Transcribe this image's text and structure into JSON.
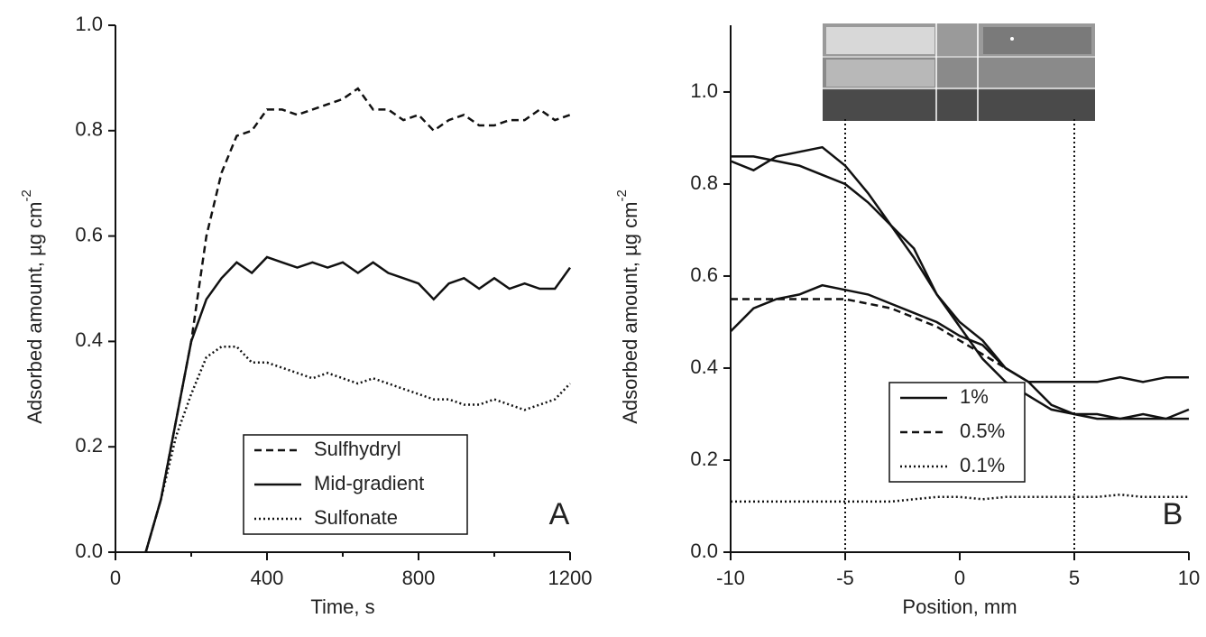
{
  "chart_data": [
    {
      "type": "line",
      "annotation": "A",
      "xlabel": "Time, s",
      "ylabel": "Adsorbed amount, µg cm",
      "ylabel_sup": "-2",
      "xlim": [
        0,
        1200
      ],
      "ylim": [
        0,
        1.0
      ],
      "xticks": [
        0,
        400,
        800,
        1200
      ],
      "xminor": [
        200,
        600,
        1000
      ],
      "yticks": [
        {
          "value": 0,
          "label": "0.0"
        },
        {
          "value": 0.2,
          "label": "0.2"
        },
        {
          "value": 0.4,
          "label": "0.4"
        },
        {
          "value": 0.6,
          "label": "0.6"
        },
        {
          "value": 0.8,
          "label": "0.8"
        },
        {
          "value": 1.0,
          "label": "1.0"
        }
      ],
      "legend": "lower right",
      "x": [
        80,
        120,
        160,
        200,
        240,
        280,
        320,
        360,
        400,
        440,
        480,
        520,
        560,
        600,
        640,
        680,
        720,
        760,
        800,
        840,
        880,
        920,
        960,
        1000,
        1040,
        1080,
        1120,
        1160,
        1200
      ],
      "series": [
        {
          "name": "Sulfhydryl",
          "color": "#111111",
          "dash": "dashed",
          "values": [
            0,
            0.1,
            0.25,
            0.4,
            0.6,
            0.72,
            0.79,
            0.8,
            0.84,
            0.84,
            0.83,
            0.84,
            0.85,
            0.86,
            0.88,
            0.84,
            0.84,
            0.82,
            0.83,
            0.8,
            0.82,
            0.83,
            0.81,
            0.81,
            0.82,
            0.82,
            0.84,
            0.82,
            0.83
          ]
        },
        {
          "name": "Mid-gradient",
          "color": "#111111",
          "dash": "solid",
          "values": [
            0,
            0.1,
            0.25,
            0.4,
            0.48,
            0.52,
            0.55,
            0.53,
            0.56,
            0.55,
            0.54,
            0.55,
            0.54,
            0.55,
            0.53,
            0.55,
            0.53,
            0.52,
            0.51,
            0.48,
            0.51,
            0.52,
            0.5,
            0.52,
            0.5,
            0.51,
            0.5,
            0.5,
            0.54
          ]
        },
        {
          "name": "Sulfonate",
          "color": "#111111",
          "dash": "dotted",
          "values": [
            0,
            0.1,
            0.22,
            0.3,
            0.37,
            0.39,
            0.39,
            0.36,
            0.36,
            0.35,
            0.34,
            0.33,
            0.34,
            0.33,
            0.32,
            0.33,
            0.32,
            0.31,
            0.3,
            0.29,
            0.29,
            0.28,
            0.28,
            0.29,
            0.28,
            0.27,
            0.28,
            0.29,
            0.32
          ]
        }
      ]
    },
    {
      "type": "line",
      "annotation": "B",
      "xlabel": "Position, mm",
      "ylabel": "Adsorbed amount, µg cm",
      "ylabel_sup": "-2",
      "xlim": [
        -10,
        10
      ],
      "ylim": [
        0,
        1.145
      ],
      "xticks": [
        -10,
        -5,
        0,
        5,
        10
      ],
      "yticks": [
        {
          "value": 0,
          "label": "0.0"
        },
        {
          "value": 0.2,
          "label": "0.2"
        },
        {
          "value": 0.4,
          "label": "0.4"
        },
        {
          "value": 0.6,
          "label": "0.6"
        },
        {
          "value": 0.8,
          "label": "0.8"
        },
        {
          "value": 1.0,
          "label": "1.0"
        }
      ],
      "vlines": [
        -5,
        5
      ],
      "legend": "center",
      "x": [
        -10,
        -9,
        -8,
        -7,
        -6,
        -5,
        -4,
        -3,
        -2,
        -1,
        0,
        1,
        2,
        3,
        4,
        5,
        6,
        7,
        8,
        9,
        10
      ],
      "series": [
        {
          "name": "1%",
          "color": "#111111",
          "dash": "solid",
          "values": [
            0.85,
            0.83,
            0.86,
            0.87,
            0.88,
            0.84,
            0.78,
            0.71,
            0.66,
            0.56,
            0.5,
            0.46,
            0.4,
            0.37,
            0.32,
            0.3,
            0.29,
            0.29,
            0.3,
            0.29,
            0.31
          ]
        },
        {
          "color": "#111111",
          "dash": "solid",
          "values": [
            0.86,
            0.86,
            0.85,
            0.84,
            0.82,
            0.8,
            0.76,
            0.71,
            0.64,
            0.56,
            0.49,
            0.42,
            0.37,
            0.34,
            0.31,
            0.3,
            0.3,
            0.29,
            0.29,
            0.29,
            0.29
          ]
        },
        {
          "name": "0.5%",
          "color": "#111111",
          "dash": "dashed",
          "values": [
            0.55,
            0.55,
            0.55,
            0.55,
            0.55,
            0.55,
            0.54,
            0.53,
            0.51,
            0.49,
            0.46,
            0.43,
            0.4,
            null,
            null,
            null,
            null,
            null,
            null,
            null,
            null
          ]
        },
        {
          "color": "#111111",
          "dash": "solid",
          "values": [
            0.48,
            0.53,
            0.55,
            0.56,
            0.58,
            0.57,
            0.56,
            0.54,
            0.52,
            0.5,
            0.47,
            0.45,
            0.4,
            0.37,
            0.37,
            0.37,
            0.37,
            0.38,
            0.37,
            0.38,
            0.38
          ]
        },
        {
          "name": "0.1%",
          "color": "#111111",
          "dash": "dotted",
          "values": [
            0.11,
            0.11,
            0.11,
            0.11,
            0.11,
            0.11,
            0.11,
            0.11,
            0.115,
            0.12,
            0.12,
            0.115,
            0.12,
            0.12,
            0.12,
            0.12,
            0.12,
            0.125,
            0.12,
            0.12,
            0.12
          ]
        }
      ]
    }
  ]
}
